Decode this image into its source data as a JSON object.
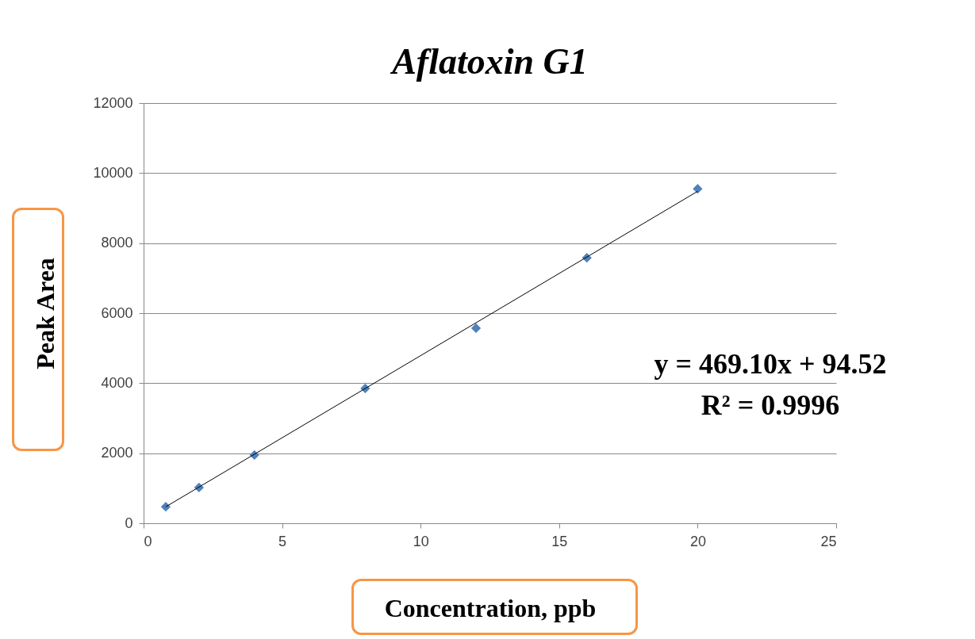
{
  "chart_data": {
    "type": "scatter",
    "title": "Aflatoxin G1",
    "xlabel": "Concentration, ppb",
    "ylabel": "Peak Area",
    "xlim": [
      0,
      25
    ],
    "xticks": [
      0,
      5,
      10,
      15,
      20,
      25
    ],
    "ylim": [
      0,
      12000
    ],
    "yticks": [
      0,
      2000,
      4000,
      6000,
      8000,
      10000,
      12000
    ],
    "grid": "y",
    "series": [
      {
        "marker": "diamond",
        "color": "#4f81bd",
        "x": [
          0.8,
          2,
          4,
          8,
          12,
          16,
          20
        ],
        "values": [
          470,
          1020,
          1950,
          3850,
          5570,
          7580,
          9550
        ]
      },
      {
        "type": "line",
        "color": "#000000",
        "x": [
          0.8,
          20
        ],
        "values": [
          470,
          9480
        ]
      }
    ],
    "annotations": [
      "y = 469.10x + 94.52",
      "R² = 0.9996"
    ]
  }
}
